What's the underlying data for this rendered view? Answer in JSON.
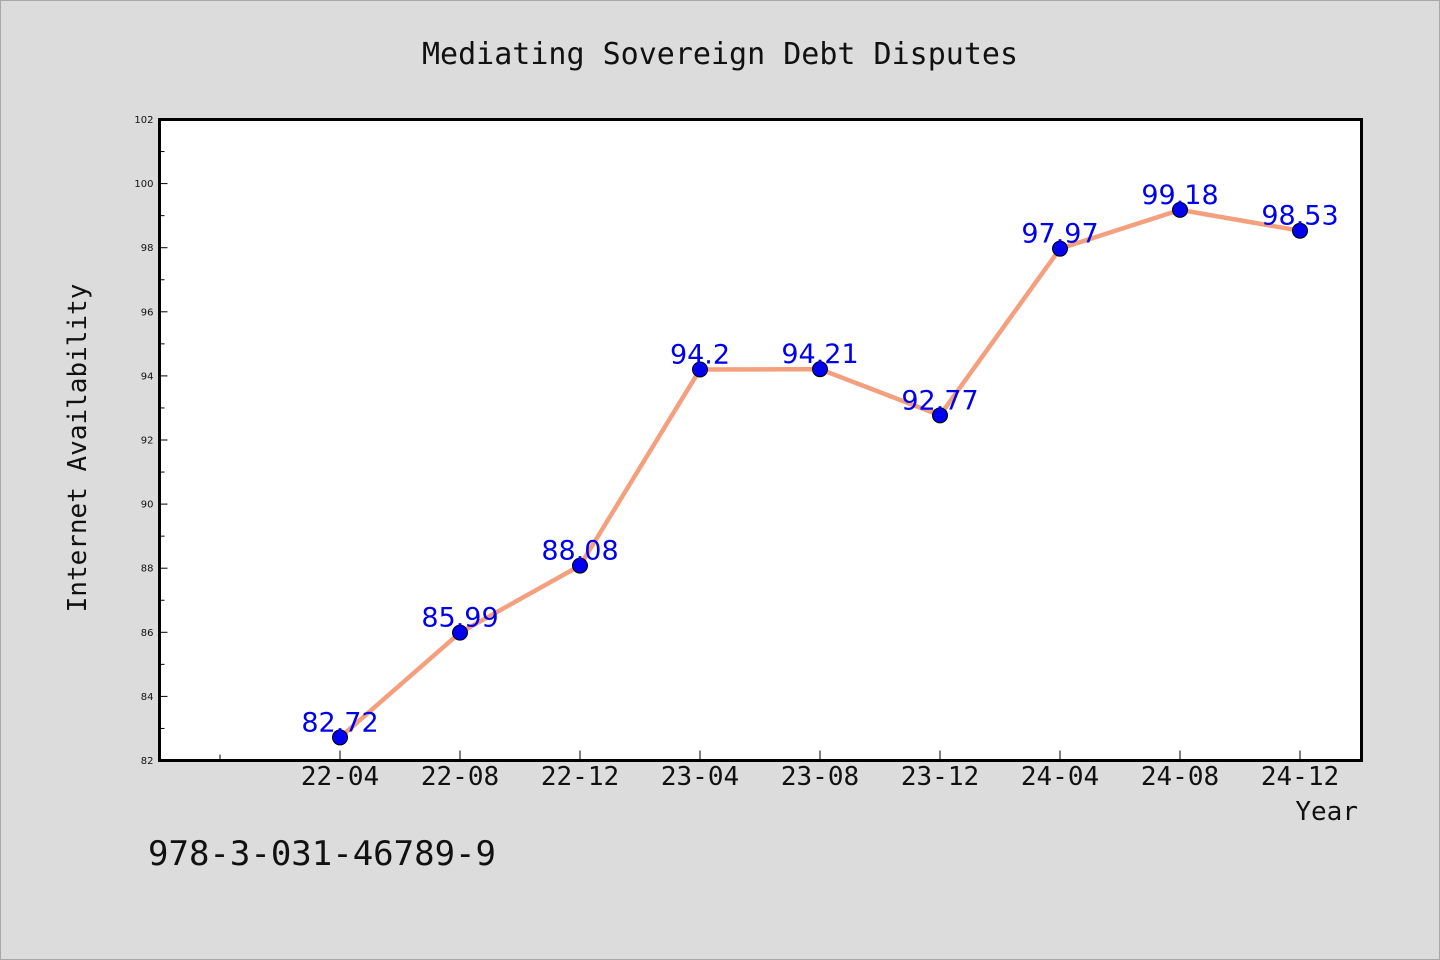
{
  "chart_data": {
    "type": "line",
    "title": "Mediating Sovereign Debt Disputes",
    "xlabel": "Year",
    "ylabel": "Internet Availability",
    "categories": [
      "22-04",
      "22-08",
      "22-12",
      "23-04",
      "23-08",
      "23-12",
      "24-04",
      "24-08",
      "24-12"
    ],
    "series": [
      {
        "values": [
          82.72,
          85.99,
          88.08,
          94.2,
          94.21,
          92.77,
          97.97,
          99.18,
          98.53
        ],
        "labels": [
          "82.72",
          "85.99",
          "88.08",
          "94.2",
          "94.21",
          "92.77",
          "97.97",
          "99.18",
          "98.53"
        ],
        "line_color": "#f4a07e",
        "marker_color": "#0000ee",
        "label_color": "#0000ee"
      }
    ],
    "ylim": [
      82,
      102
    ],
    "yticks": [
      "82",
      "84",
      "86",
      "88",
      "90",
      "92",
      "94",
      "96",
      "98",
      "100",
      "102"
    ],
    "grid": false,
    "legend": "none"
  },
  "footer": {
    "isbn": "978-3-031-46789-9"
  }
}
